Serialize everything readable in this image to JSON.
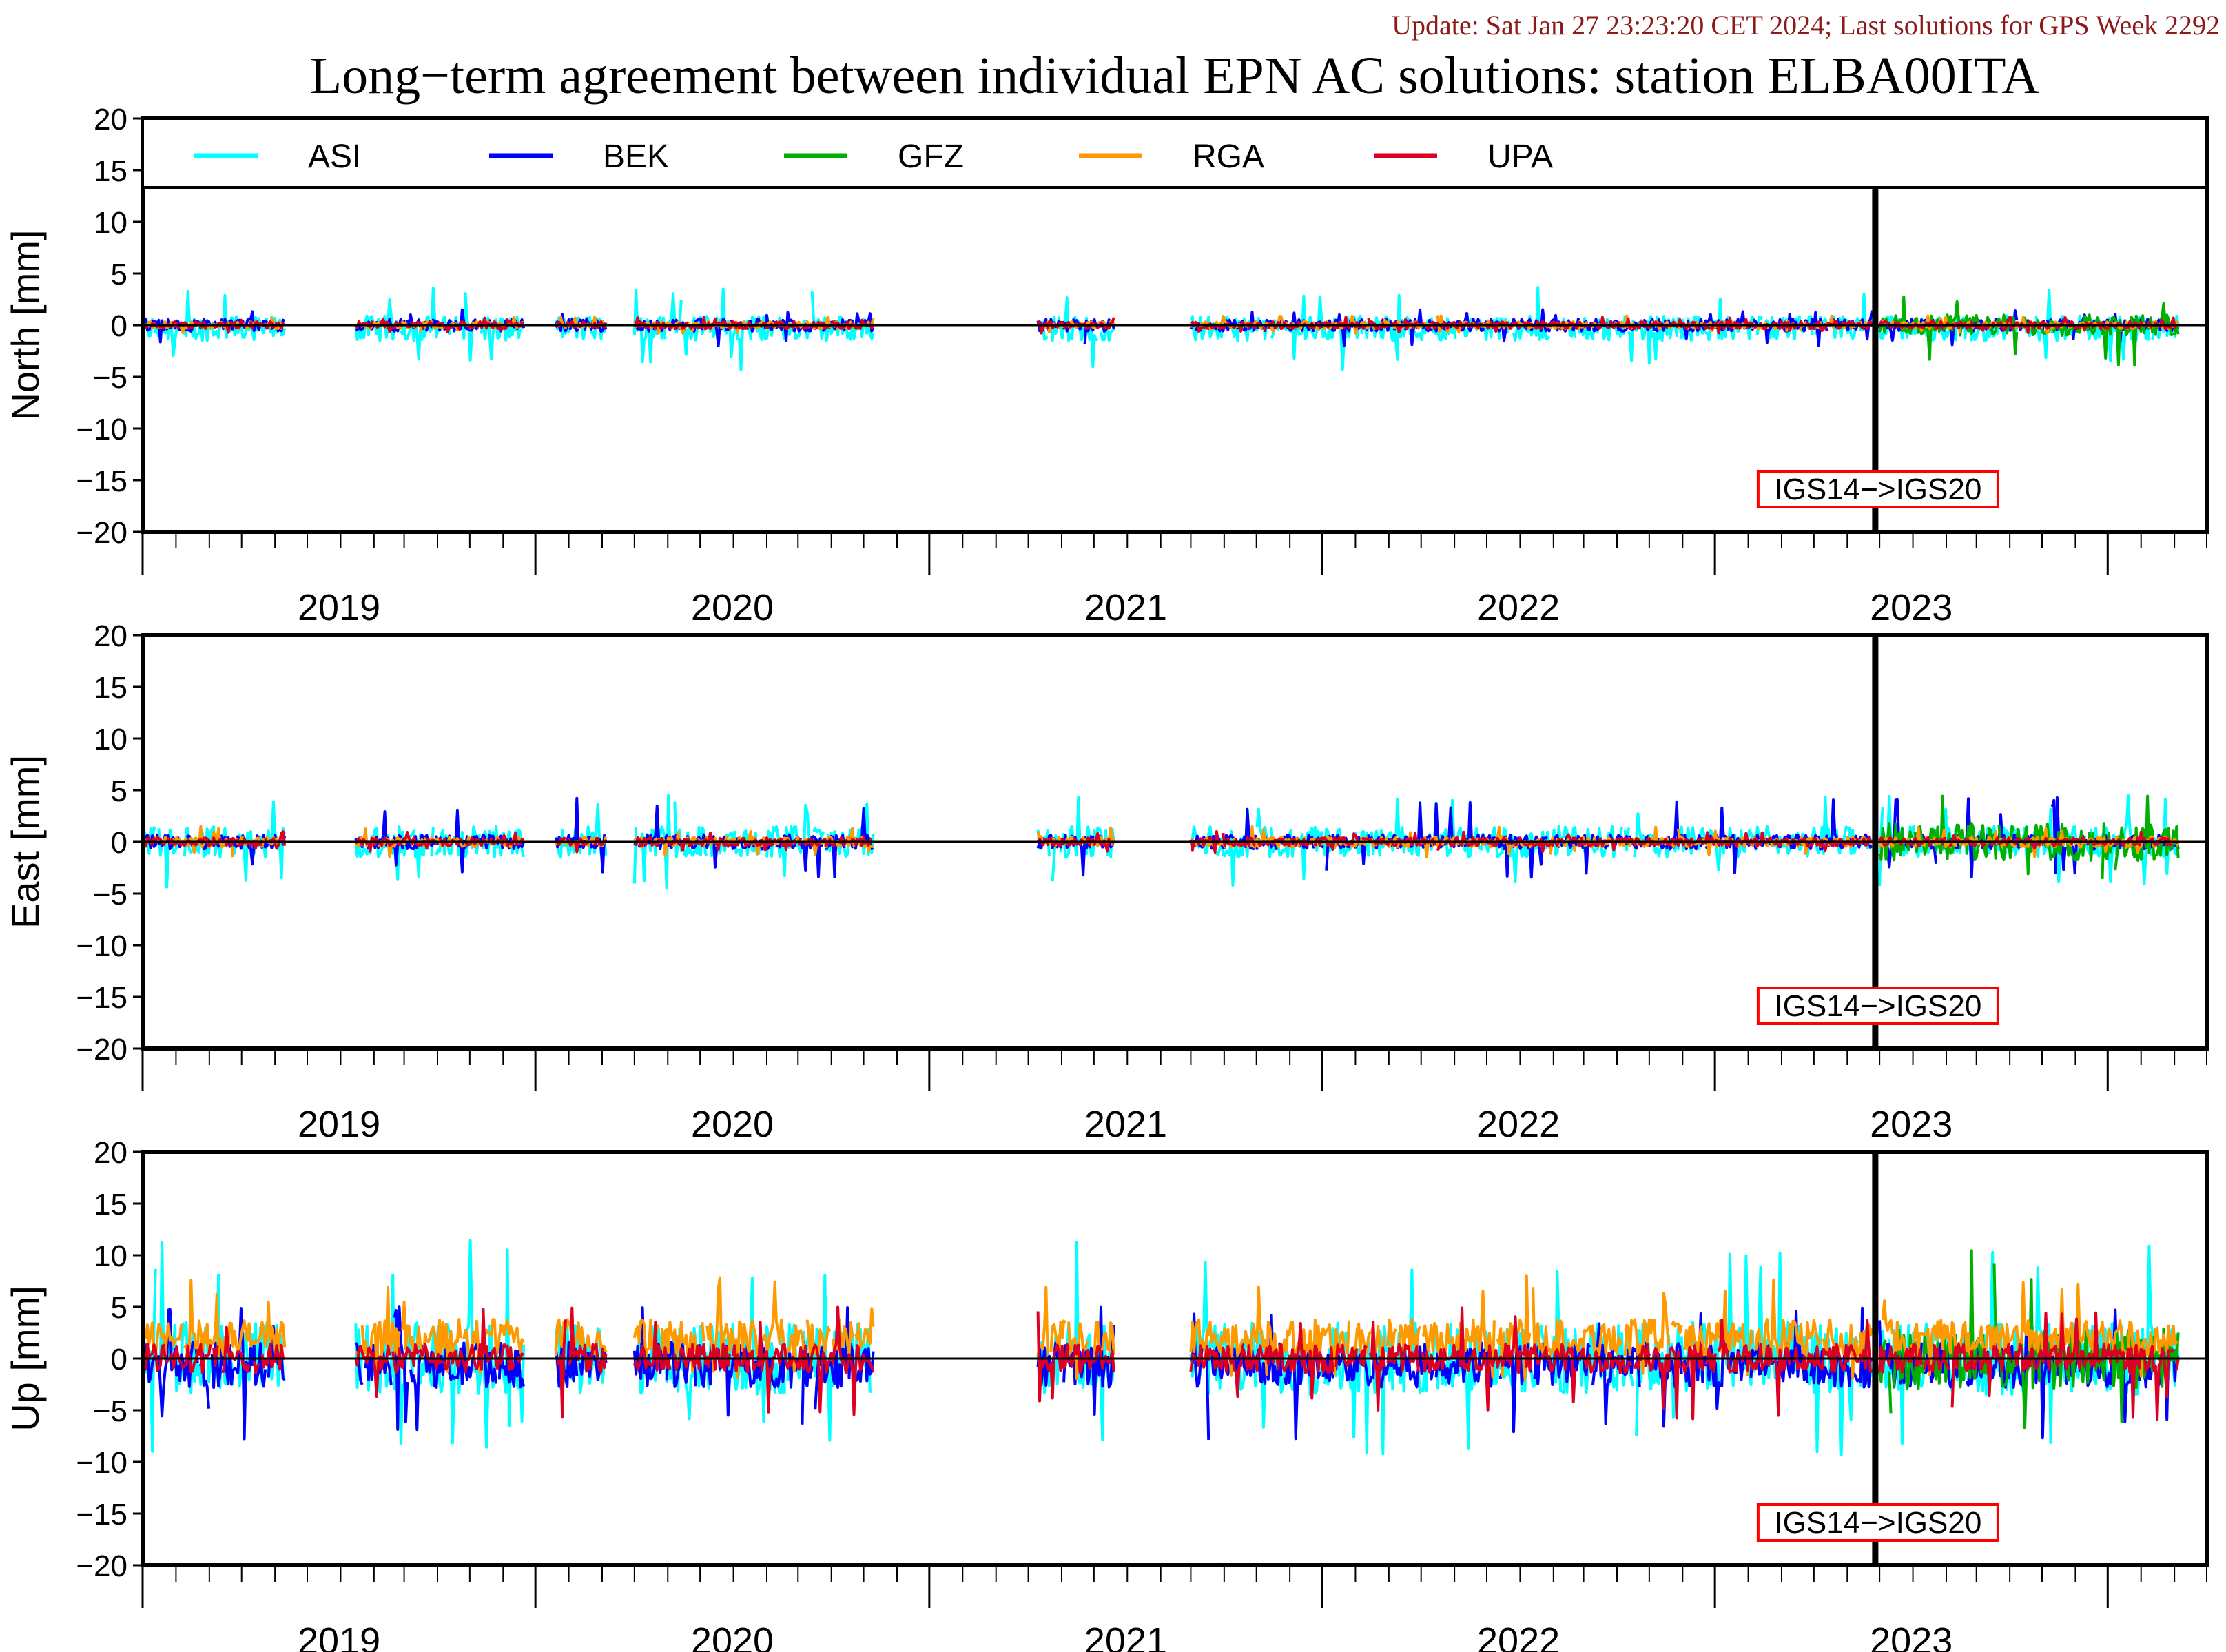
{
  "update_text": "Update: Sat Jan 27 23:23:20 CET 2024; Last solutions for GPS Week 2292",
  "title": "Long−term agreement between individual EPN AC solutions: station ELBA00ITA",
  "colors": {
    "update_text": "#8b1a1a",
    "frame_label_border": "#ff0000",
    "ASI": "#00ffff",
    "BEK": "#0000ff",
    "GFZ": "#00b000",
    "RGA": "#ff9900",
    "UPA": "#dd0022"
  },
  "chart_data": {
    "type": "line",
    "x_range": [
      "2018-07-01",
      "2023-10-01"
    ],
    "year_labels": [
      "2019",
      "2020",
      "2021",
      "2022",
      "2023"
    ],
    "ylim": [
      -20,
      20
    ],
    "yticks": [
      "20",
      "15",
      "10",
      "5",
      "0",
      "−5",
      "−10",
      "−15",
      "−20"
    ],
    "zero_line": true,
    "legend_position": "top",
    "legend": [
      "ASI",
      "BEK",
      "GFZ",
      "RGA",
      "UPA"
    ],
    "frame_change": {
      "date": "2022-11-27",
      "label": "IGS14−>IGS20"
    },
    "segments": [
      {
        "start": "2018-07-01",
        "end": "2018-11-10"
      },
      {
        "start": "2019-01-15",
        "end": "2019-06-20"
      },
      {
        "start": "2019-07-20",
        "end": "2019-09-05"
      },
      {
        "start": "2019-10-01",
        "end": "2020-05-10"
      },
      {
        "start": "2020-10-10",
        "end": "2020-12-20"
      },
      {
        "start": "2021-03-01",
        "end": "2022-11-24"
      },
      {
        "start": "2022-12-01",
        "end": "2023-09-05"
      }
    ],
    "panels": [
      {
        "ylabel": "North [mm]",
        "series": [
          {
            "name": "ASI",
            "amp": 1.2,
            "peak_min": -4.5,
            "peak_max": 3.8
          },
          {
            "name": "BEK",
            "amp": 0.6,
            "peak_min": -2.0,
            "peak_max": 1.5
          },
          {
            "name": "GFZ",
            "amp": 1.0,
            "peak_min": -4.0,
            "peak_max": 2.8
          },
          {
            "name": "RGA",
            "amp": 0.35,
            "peak_min": -0.8,
            "peak_max": 0.9
          },
          {
            "name": "UPA",
            "amp": 0.35,
            "peak_min": -0.8,
            "peak_max": 0.8
          }
        ]
      },
      {
        "ylabel": "East [mm]",
        "series": [
          {
            "name": "ASI",
            "amp": 1.5,
            "peak_min": -4.5,
            "peak_max": 4.5
          },
          {
            "name": "BEK",
            "amp": 0.7,
            "peak_min": -3.5,
            "peak_max": 4.3
          },
          {
            "name": "GFZ",
            "amp": 1.8,
            "peak_min": -4.5,
            "peak_max": 4.5
          },
          {
            "name": "RGA",
            "amp": 0.5,
            "peak_min": -1.5,
            "peak_max": 1.5
          },
          {
            "name": "UPA",
            "amp": 0.4,
            "peak_min": -1.0,
            "peak_max": 1.0
          }
        ]
      },
      {
        "ylabel": "Up [mm]",
        "series": [
          {
            "name": "ASI",
            "amp": 3.5,
            "peak_min": -9.5,
            "peak_max": 11.5
          },
          {
            "name": "BEK",
            "amp": 2.2,
            "peak_min": -8.0,
            "peak_max": 5.0
          },
          {
            "name": "GFZ",
            "amp": 3.0,
            "peak_min": -8.0,
            "peak_max": 11.0
          },
          {
            "name": "RGA",
            "amp": 1.8,
            "peak_min": -2.0,
            "peak_max": 8.0
          },
          {
            "name": "UPA",
            "amp": 1.4,
            "peak_min": -6.0,
            "peak_max": 5.0
          }
        ]
      }
    ]
  }
}
